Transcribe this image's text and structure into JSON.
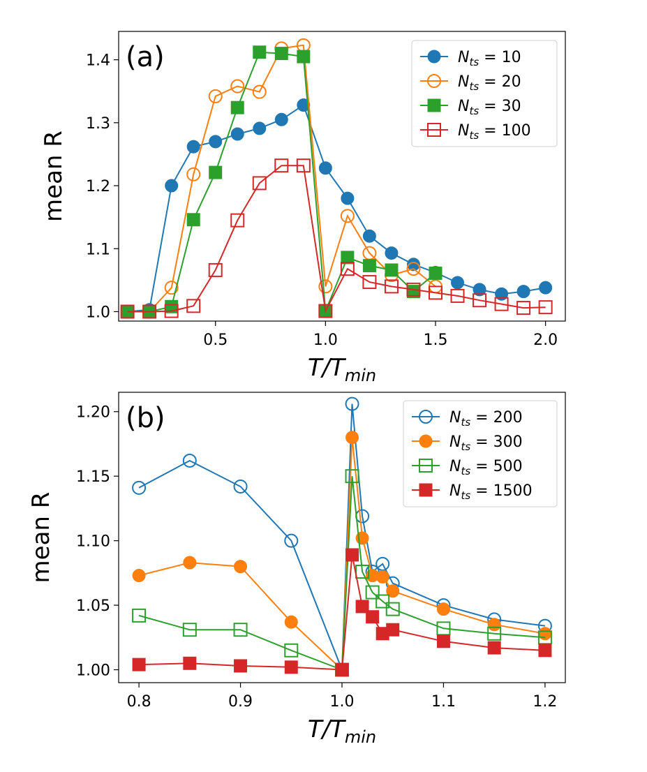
{
  "chart_data": [
    {
      "type": "line",
      "panel_label": "(a)",
      "xlabel_main": "T/T",
      "xlabel_sub": "min",
      "ylabel": "mean R",
      "xlim": [
        0.06,
        2.09
      ],
      "ylim": [
        0.985,
        1.445
      ],
      "xticks": [
        0.5,
        1.0,
        1.5,
        2.0
      ],
      "xtick_labels": [
        "0.5",
        "1.0",
        "1.5",
        "2.0"
      ],
      "yticks": [
        1.0,
        1.1,
        1.2,
        1.3,
        1.4
      ],
      "ytick_labels": [
        "1.0",
        "1.1",
        "1.2",
        "1.3",
        "1.4"
      ],
      "legend_position": "top-right",
      "series": [
        {
          "name": "N_ts = 10",
          "legend_prefix": "N",
          "legend_sub": "ts",
          "legend_value": "10",
          "color": "#1f77b4",
          "marker": "circle",
          "filled": true,
          "x": [
            0.1,
            0.2,
            0.3,
            0.4,
            0.5,
            0.6,
            0.7,
            0.8,
            0.9,
            1.0,
            1.1,
            1.2,
            1.3,
            1.4,
            1.5,
            1.6,
            1.7,
            1.8,
            1.9,
            2.0
          ],
          "y": [
            1.0,
            1.003,
            1.2,
            1.262,
            1.27,
            1.282,
            1.291,
            1.305,
            1.328,
            1.228,
            1.18,
            1.12,
            1.093,
            1.075,
            1.062,
            1.046,
            1.035,
            1.028,
            1.032,
            1.038
          ]
        },
        {
          "name": "N_ts = 20",
          "legend_prefix": "N",
          "legend_sub": "ts",
          "legend_value": "20",
          "color": "#ff7f0e",
          "marker": "circle",
          "filled": false,
          "x": [
            0.1,
            0.2,
            0.3,
            0.4,
            0.5,
            0.6,
            0.7,
            0.8,
            0.9,
            1.0,
            1.1,
            1.2,
            1.3,
            1.4,
            1.5
          ],
          "y": [
            1.0,
            1.0,
            1.038,
            1.218,
            1.342,
            1.358,
            1.349,
            1.418,
            1.423,
            1.04,
            1.152,
            1.093,
            1.058,
            1.068,
            1.04
          ]
        },
        {
          "name": "N_ts = 30",
          "legend_prefix": "N",
          "legend_sub": "ts",
          "legend_value": "30",
          "color": "#2ca02c",
          "marker": "square",
          "filled": true,
          "x": [
            0.1,
            0.2,
            0.3,
            0.4,
            0.5,
            0.6,
            0.7,
            0.8,
            0.9,
            1.0,
            1.1,
            1.2,
            1.3,
            1.4,
            1.5
          ],
          "y": [
            1.0,
            1.0,
            1.008,
            1.146,
            1.221,
            1.324,
            1.412,
            1.41,
            1.405,
            1.001,
            1.086,
            1.073,
            1.066,
            1.032,
            1.061
          ]
        },
        {
          "name": "N_ts = 100",
          "legend_prefix": "N",
          "legend_sub": "ts",
          "legend_value": "100",
          "color": "#d62728",
          "marker": "square",
          "filled": false,
          "x": [
            0.1,
            0.2,
            0.3,
            0.4,
            0.5,
            0.6,
            0.7,
            0.8,
            0.9,
            1.0,
            1.1,
            1.2,
            1.3,
            1.4,
            1.5,
            1.6,
            1.7,
            1.8,
            1.9,
            2.0
          ],
          "y": [
            1.0,
            1.0,
            1.001,
            1.009,
            1.066,
            1.145,
            1.204,
            1.232,
            1.232,
            1.001,
            1.068,
            1.047,
            1.04,
            1.035,
            1.03,
            1.025,
            1.018,
            1.012,
            1.006,
            1.007
          ]
        }
      ]
    },
    {
      "type": "line",
      "panel_label": "(b)",
      "xlabel_main": "T/T",
      "xlabel_sub": "min",
      "ylabel": "mean R",
      "xlim": [
        0.78,
        1.22
      ],
      "ylim": [
        0.99,
        1.215
      ],
      "xticks": [
        0.8,
        0.9,
        1.0,
        1.1,
        1.2
      ],
      "xtick_labels": [
        "0.8",
        "0.9",
        "1.0",
        "1.1",
        "1.2"
      ],
      "yticks": [
        1.0,
        1.05,
        1.1,
        1.15,
        1.2
      ],
      "ytick_labels": [
        "1.00",
        "1.05",
        "1.10",
        "1.15",
        "1.20"
      ],
      "legend_position": "top-right",
      "series": [
        {
          "name": "N_ts = 200",
          "legend_prefix": "N",
          "legend_sub": "ts",
          "legend_value": "200",
          "color": "#1f77b4",
          "marker": "circle",
          "filled": false,
          "x": [
            0.8,
            0.85,
            0.9,
            0.95,
            1.0,
            1.01,
            1.02,
            1.03,
            1.04,
            1.05,
            1.1,
            1.15,
            1.2
          ],
          "y": [
            1.141,
            1.162,
            1.142,
            1.1,
            1.0,
            1.206,
            1.119,
            1.076,
            1.082,
            1.067,
            1.05,
            1.039,
            1.034
          ]
        },
        {
          "name": "N_ts = 300",
          "legend_prefix": "N",
          "legend_sub": "ts",
          "legend_value": "300",
          "color": "#ff7f0e",
          "marker": "circle",
          "filled": true,
          "x": [
            0.8,
            0.85,
            0.9,
            0.95,
            1.0,
            1.01,
            1.02,
            1.03,
            1.04,
            1.05,
            1.1,
            1.15,
            1.2
          ],
          "y": [
            1.073,
            1.083,
            1.08,
            1.037,
            1.0,
            1.18,
            1.102,
            1.073,
            1.072,
            1.061,
            1.047,
            1.035,
            1.028
          ]
        },
        {
          "name": "N_ts = 500",
          "legend_prefix": "N",
          "legend_sub": "ts",
          "legend_value": "500",
          "color": "#2ca02c",
          "marker": "square",
          "filled": false,
          "x": [
            0.8,
            0.85,
            0.9,
            0.95,
            1.0,
            1.01,
            1.02,
            1.03,
            1.04,
            1.05,
            1.1,
            1.15,
            1.2
          ],
          "y": [
            1.042,
            1.031,
            1.031,
            1.015,
            1.0,
            1.15,
            1.076,
            1.06,
            1.053,
            1.047,
            1.032,
            1.028,
            1.025
          ]
        },
        {
          "name": "N_ts = 1500",
          "legend_prefix": "N",
          "legend_sub": "ts",
          "legend_value": "1500",
          "color": "#d62728",
          "marker": "square",
          "filled": true,
          "x": [
            0.8,
            0.85,
            0.9,
            0.95,
            1.0,
            1.01,
            1.02,
            1.03,
            1.04,
            1.05,
            1.1,
            1.15,
            1.2
          ],
          "y": [
            1.004,
            1.005,
            1.003,
            1.002,
            1.0,
            1.089,
            1.049,
            1.041,
            1.028,
            1.031,
            1.022,
            1.017,
            1.015
          ]
        }
      ]
    }
  ]
}
